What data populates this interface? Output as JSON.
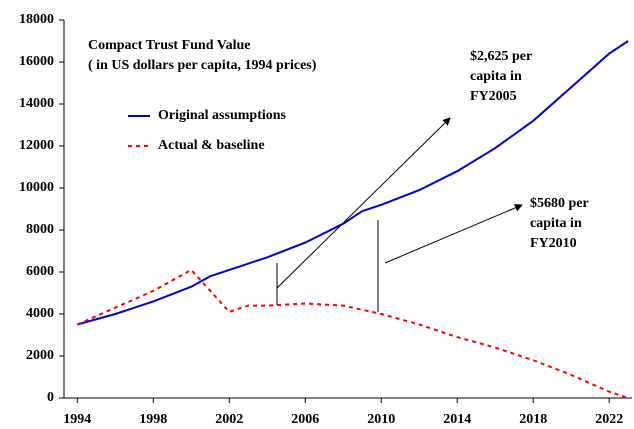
{
  "chart_data": {
    "type": "line",
    "title": [
      "Compact Trust Fund Value",
      "( in US dollars per capita, 1994 prices)"
    ],
    "series": [
      {
        "name": "Original assumptions",
        "color": "#0000cc",
        "dash": false,
        "x": [
          1994,
          1996,
          1998,
          2000,
          2001,
          2002,
          2004,
          2006,
          2008,
          2009,
          2010,
          2012,
          2014,
          2016,
          2018,
          2020,
          2022,
          2023
        ],
        "values": [
          3500,
          4000,
          4600,
          5300,
          5800,
          6100,
          6700,
          7400,
          8300,
          8900,
          9200,
          9900,
          10800,
          11900,
          13200,
          14800,
          16400,
          17000
        ]
      },
      {
        "name": "Actual & baseline",
        "color": "#ff0000",
        "dash": true,
        "x": [
          1994,
          1996,
          1998,
          2000,
          2002,
          2003,
          2004,
          2006,
          2008,
          2010,
          2012,
          2014,
          2016,
          2018,
          2020,
          2022,
          2023
        ],
        "values": [
          3500,
          4300,
          5100,
          6100,
          4100,
          4400,
          4400,
          4500,
          4400,
          4000,
          3500,
          2900,
          2400,
          1800,
          1100,
          300,
          0
        ]
      }
    ],
    "annotations": [
      [
        "$2,625 per",
        "capita in",
        "FY2005"
      ],
      [
        "$5680 per",
        "capita in",
        "FY2010"
      ]
    ],
    "xlim": [
      1993.3,
      2023.2
    ],
    "xticks": [
      1994,
      1998,
      2002,
      2006,
      2010,
      2014,
      2018,
      2022
    ],
    "ylim": [
      0,
      18000
    ],
    "yticks": [
      0,
      2000,
      4000,
      6000,
      8000,
      10000,
      12000,
      14000,
      16000,
      18000
    ]
  }
}
